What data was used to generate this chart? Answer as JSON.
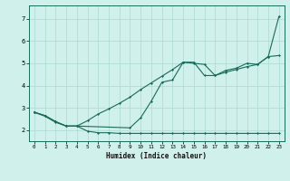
{
  "xlabel": "Humidex (Indice chaleur)",
  "background_color": "#cff0eb",
  "line_color": "#1a6b5a",
  "grid_color": "#aad8d0",
  "xlim": [
    -0.5,
    23.5
  ],
  "ylim": [
    1.5,
    7.6
  ],
  "yticks": [
    2,
    3,
    4,
    5,
    6,
    7
  ],
  "xticks": [
    0,
    1,
    2,
    3,
    4,
    5,
    6,
    7,
    8,
    9,
    10,
    11,
    12,
    13,
    14,
    15,
    16,
    17,
    18,
    19,
    20,
    21,
    22,
    23
  ],
  "series1_x": [
    0,
    1,
    2,
    3,
    4,
    5,
    6,
    7,
    8,
    9,
    10,
    11,
    12,
    13,
    14,
    15,
    16,
    17,
    18,
    19,
    20,
    21,
    22,
    23
  ],
  "series1_y": [
    2.8,
    2.65,
    2.38,
    2.18,
    2.18,
    1.95,
    1.88,
    1.88,
    1.85,
    1.85,
    1.85,
    1.85,
    1.85,
    1.85,
    1.85,
    1.85,
    1.85,
    1.85,
    1.85,
    1.85,
    1.85,
    1.85,
    1.85,
    1.85
  ],
  "series2_x": [
    0,
    1,
    2,
    3,
    4,
    5,
    6,
    7,
    8,
    9,
    10,
    11,
    12,
    13,
    14,
    15,
    16,
    17,
    18,
    19,
    20,
    21,
    22,
    23
  ],
  "series2_y": [
    2.8,
    2.65,
    2.38,
    2.18,
    2.18,
    2.42,
    2.72,
    2.95,
    3.2,
    3.48,
    3.82,
    4.12,
    4.42,
    4.72,
    5.05,
    5.05,
    4.45,
    4.45,
    4.68,
    4.78,
    5.0,
    4.95,
    5.3,
    7.1
  ],
  "series3_x": [
    0,
    1,
    2,
    3,
    4,
    9,
    10,
    11,
    12,
    13,
    14,
    15,
    16,
    17,
    18,
    19,
    20,
    21,
    22,
    23
  ],
  "series3_y": [
    2.8,
    2.62,
    2.35,
    2.18,
    2.18,
    2.1,
    2.55,
    3.3,
    4.15,
    4.25,
    5.05,
    5.0,
    4.95,
    4.45,
    4.6,
    4.72,
    4.85,
    4.95,
    5.3,
    5.35
  ]
}
